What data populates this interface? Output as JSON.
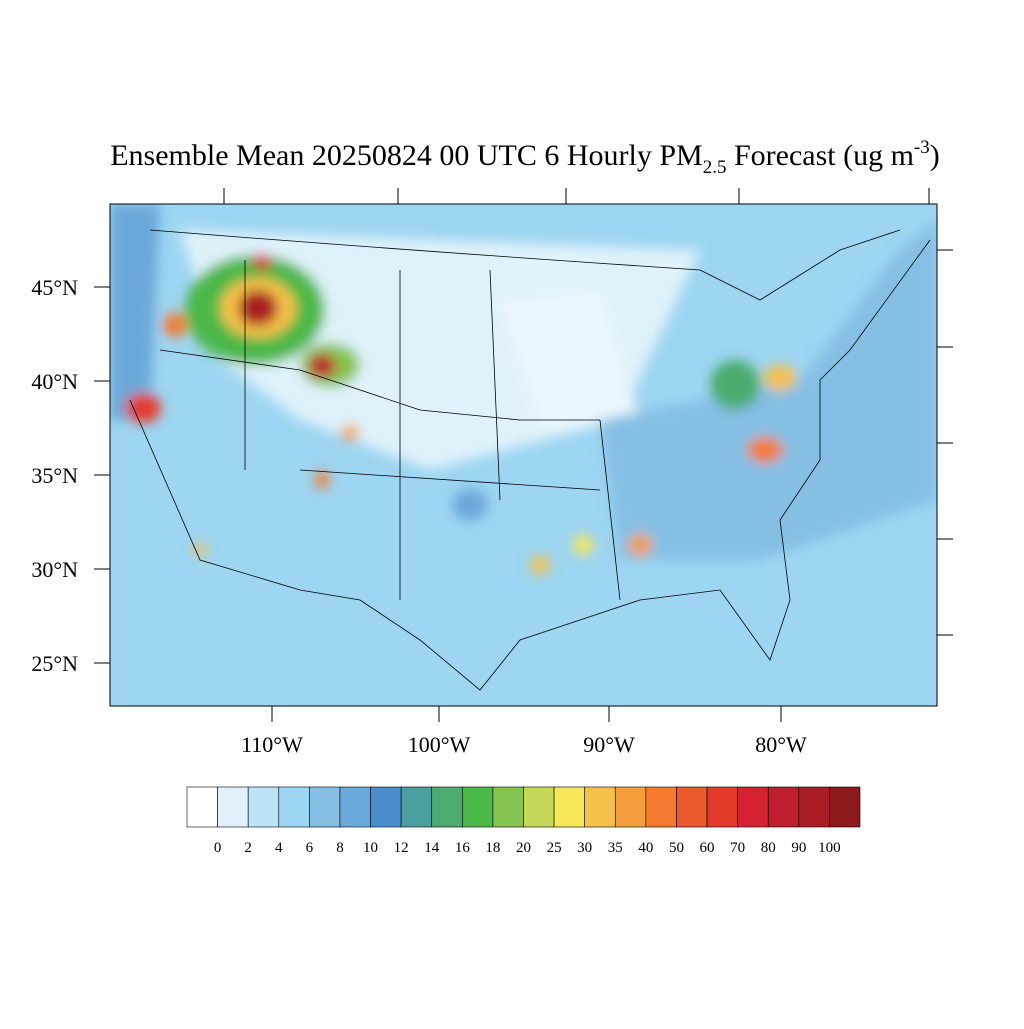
{
  "map": {
    "title": {
      "main": "Ensemble Mean 20250824 00 UTC 6 Hourly PM",
      "subscript": "2.5",
      "middle": " Forecast (ug m",
      "superscript": "-3",
      "end": ")"
    },
    "lat_labels": [
      "45°N",
      "40°N",
      "35°N",
      "30°N",
      "25°N"
    ],
    "lon_labels": [
      "110°W",
      "100°W",
      "90°W",
      "80°W"
    ],
    "colorbar": {
      "levels": [
        0,
        2,
        4,
        6,
        8,
        10,
        12,
        14,
        16,
        18,
        20,
        25,
        30,
        35,
        40,
        50,
        60,
        70,
        80,
        90,
        100
      ],
      "colors": [
        "#ffffff",
        "#dff2fb",
        "#bde3f6",
        "#9dd5f2",
        "#85bfe4",
        "#6aa8d9",
        "#4a8fcc",
        "#4a9fa0",
        "#4cab6e",
        "#4bb848",
        "#85c44e",
        "#c6d75a",
        "#f7e65a",
        "#f6c14a",
        "#f59e3f",
        "#f37a2e",
        "#ea5a2c",
        "#e33b2a",
        "#d62230",
        "#be1e2d",
        "#a81c24",
        "#8b1a1c"
      ]
    }
  }
}
